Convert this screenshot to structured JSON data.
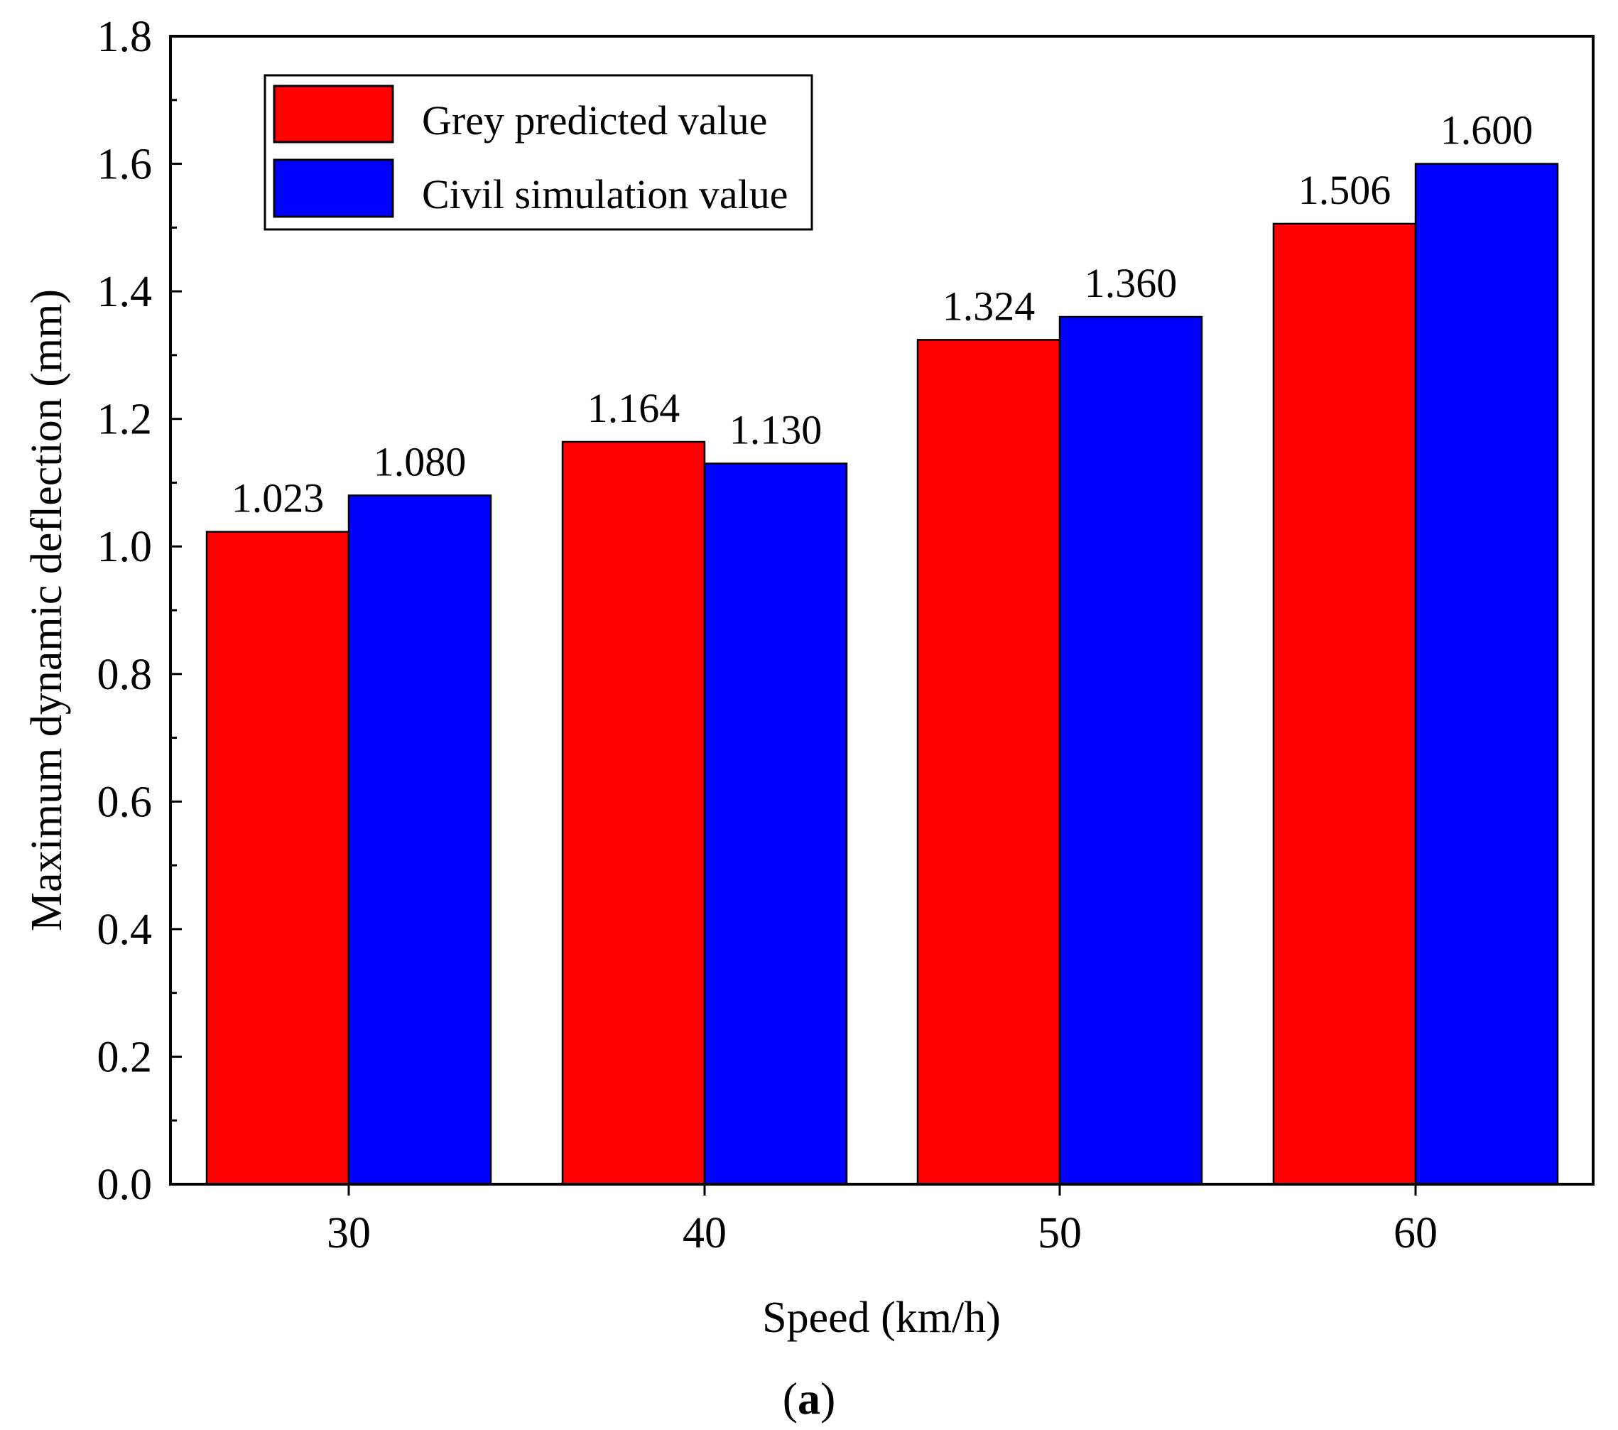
{
  "chart_data": {
    "type": "bar",
    "categories": [
      "30",
      "40",
      "50",
      "60"
    ],
    "series": [
      {
        "name": "Grey predicted value",
        "color": "#ff0000",
        "values": [
          1.023,
          1.164,
          1.324,
          1.506
        ],
        "labels": [
          "1.023",
          "1.164",
          "1.324",
          "1.506"
        ]
      },
      {
        "name": "Civil simulation value",
        "color": "#0000ff",
        "values": [
          1.08,
          1.13,
          1.36,
          1.6
        ],
        "labels": [
          "1.080",
          "1.130",
          "1.360",
          "1.600"
        ]
      }
    ],
    "xlabel": "Speed (km/h)",
    "ylabel": "Maximum dynamic deflection (mm)",
    "ylim": [
      0,
      1.8
    ],
    "yticks": [
      "0.0",
      "0.2",
      "0.4",
      "0.6",
      "0.8",
      "1.0",
      "1.2",
      "1.4",
      "1.6",
      "1.8"
    ],
    "grid": false,
    "legend_position": "top-left"
  },
  "caption": {
    "open": "(",
    "letter": "a",
    "close": ")"
  }
}
